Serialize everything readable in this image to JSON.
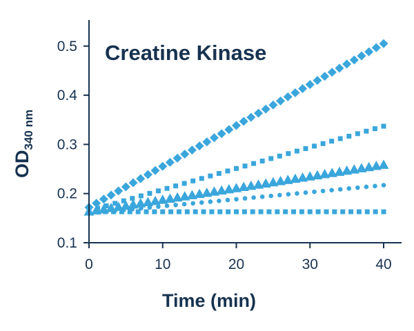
{
  "chart_data": {
    "type": "scatter",
    "title": "Creatine Kinase",
    "xlabel": "Time (min)",
    "ylabel": "OD",
    "ylabel_subscript": "340 nm",
    "xlim": [
      0,
      40
    ],
    "ylim": [
      0.1,
      0.55
    ],
    "xticks": [
      0,
      10,
      20,
      30,
      40
    ],
    "yticks": [
      0.1,
      0.2,
      0.3,
      0.4,
      0.5
    ],
    "xtick_labels": [
      "0",
      "10",
      "20",
      "30",
      "40"
    ],
    "ytick_labels": [
      "0.1",
      "0.2",
      "0.3",
      "0.4",
      "0.5"
    ],
    "grid": false,
    "color": "#3aa6dc",
    "axis_color": "#17324f",
    "series": [
      {
        "marker": "diamond",
        "x": [
          0,
          40
        ],
        "y": [
          0.172,
          0.505
        ],
        "points": 40
      },
      {
        "marker": "square",
        "x": [
          0,
          40
        ],
        "y": [
          0.165,
          0.337
        ],
        "points": 34
      },
      {
        "marker": "triangle",
        "x": [
          0,
          40
        ],
        "y": [
          0.163,
          0.258
        ],
        "points": 40
      },
      {
        "marker": "circle",
        "x": [
          0,
          40
        ],
        "y": [
          0.16,
          0.217
        ],
        "points": 34
      },
      {
        "marker": "square",
        "x": [
          0,
          40
        ],
        "y": [
          0.163,
          0.163
        ],
        "points": 36
      }
    ]
  }
}
